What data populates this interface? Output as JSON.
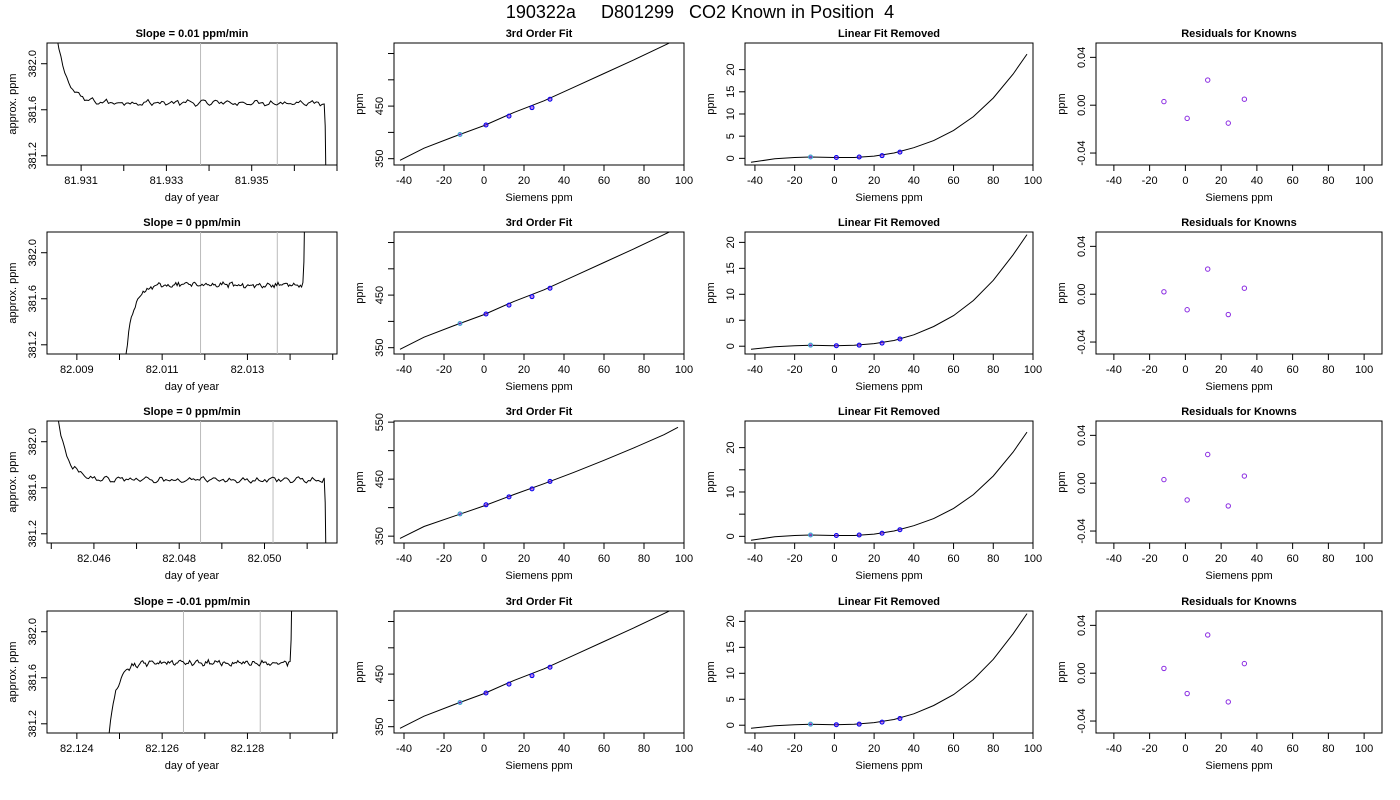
{
  "page": {
    "title": "190322a     D801299   CO2 Known in Position  4"
  },
  "chart_data": [
    {
      "row": 0,
      "col": 0,
      "type": "line",
      "title": "Slope =  0.01  ppm/min",
      "xlabel": "day of year",
      "ylabel": "approx. ppm",
      "xlim": [
        81.9302,
        81.937
      ],
      "ylim": [
        381.12,
        382.18
      ],
      "xticks": [
        81.931,
        81.932,
        81.933,
        81.934,
        81.935,
        81.936,
        81.937
      ],
      "xticklabels": [
        "81.931",
        "",
        "81.933",
        "",
        "81.935",
        "",
        ""
      ],
      "yticks": [
        381.2,
        381.6,
        382.0
      ],
      "yticklabels": [
        "381.2",
        "381.6",
        "382.0"
      ],
      "vlines": [
        81.9338,
        81.9356
      ],
      "level": 381.66,
      "shape": "down",
      "x_start": 81.9302,
      "x_edge": 81.9367,
      "colors": {
        "line": "#000000",
        "vline": "#bbbbbb"
      }
    },
    {
      "row": 0,
      "col": 1,
      "type": "line",
      "title": "3rd Order Fit",
      "xlabel": "Siemens ppm",
      "ylabel": "ppm",
      "xlim": [
        -45,
        100
      ],
      "ylim": [
        338,
        570
      ],
      "xticks": [
        -40,
        -20,
        0,
        20,
        40,
        60,
        80,
        100
      ],
      "xticklabels": [
        "-40",
        "-20",
        "0",
        "20",
        "40",
        "60",
        "80",
        "100"
      ],
      "yticks": [
        350,
        400,
        450,
        500,
        550
      ],
      "yticklabels": [
        "350",
        "",
        "450",
        "",
        ""
      ],
      "curve_x": [
        -42,
        -30,
        -15,
        0,
        15,
        30,
        45,
        60,
        75,
        90,
        97
      ],
      "curve_y": [
        347,
        370,
        392,
        413,
        438,
        460,
        486,
        512,
        538,
        565,
        578
      ],
      "points_x": [
        -12,
        1,
        12.5,
        24,
        33
      ],
      "points_y": [
        396,
        414,
        431,
        447,
        463
      ]
    },
    {
      "row": 0,
      "col": 2,
      "type": "line",
      "title": "Linear Fit Removed",
      "xlabel": "Siemens ppm",
      "ylabel": "ppm",
      "xlim": [
        -45,
        100
      ],
      "ylim": [
        -1.5,
        26
      ],
      "xticks": [
        -40,
        -20,
        0,
        20,
        40,
        60,
        80,
        100
      ],
      "xticklabels": [
        "-40",
        "-20",
        "0",
        "20",
        "40",
        "60",
        "80",
        "100"
      ],
      "yticks": [
        0,
        5,
        10,
        15,
        20
      ],
      "yticklabels": [
        "0",
        "5",
        "10",
        "15",
        "20"
      ],
      "curve_x": [
        -42,
        -30,
        -20,
        -12,
        0,
        10,
        20,
        30,
        40,
        50,
        60,
        70,
        80,
        90,
        97
      ],
      "curve_y": [
        -0.9,
        -0.1,
        0.2,
        0.3,
        0.2,
        0.2,
        0.5,
        1.2,
        2.4,
        4.0,
        6.3,
        9.4,
        13.6,
        19.0,
        23.5
      ],
      "points_x": [
        -12,
        1,
        12.5,
        24,
        33
      ],
      "points_y": [
        0.3,
        0.2,
        0.3,
        0.6,
        1.4
      ]
    },
    {
      "row": 0,
      "col": 3,
      "type": "scatter",
      "title": "Residuals for Knowns",
      "xlabel": "Siemens ppm",
      "ylabel": "ppm",
      "xlim": [
        -50,
        110
      ],
      "ylim": [
        -0.05,
        0.052
      ],
      "xticks": [
        -40,
        -20,
        0,
        20,
        40,
        60,
        80,
        100
      ],
      "xticklabels": [
        "-40",
        "-20",
        "0",
        "20",
        "40",
        "60",
        "80",
        "100"
      ],
      "yticks": [
        -0.04,
        0.0,
        0.04
      ],
      "yticklabels": [
        "-0.04",
        "0.00",
        "0.04"
      ],
      "points_x": [
        -12,
        1,
        12.5,
        24,
        33
      ],
      "points_y": [
        0.003,
        -0.011,
        0.021,
        -0.015,
        0.005
      ]
    },
    {
      "row": 1,
      "col": 0,
      "type": "line",
      "title": "Slope =  0  ppm/min",
      "xlabel": "day of year",
      "ylabel": "approx. ppm",
      "xlim": [
        82.0083,
        82.0151
      ],
      "ylim": [
        381.12,
        382.18
      ],
      "xticks": [
        82.009,
        82.01,
        82.011,
        82.012,
        82.013,
        82.014,
        82.015
      ],
      "xticklabels": [
        "82.009",
        "",
        "82.011",
        "",
        "82.013",
        "",
        ""
      ],
      "yticks": [
        381.2,
        381.6,
        382.0
      ],
      "yticklabels": [
        "381.2",
        "381.6",
        "382.0"
      ],
      "vlines": [
        82.0119,
        82.0137
      ],
      "level": 381.72,
      "shape": "up",
      "x_start": 82.01,
      "x_edge": 82.0143,
      "colors": {
        "line": "#000000",
        "vline": "#bbbbbb"
      }
    },
    {
      "row": 1,
      "col": 1,
      "type": "line",
      "title": "3rd Order Fit",
      "xlabel": "Siemens ppm",
      "ylabel": "ppm",
      "xlim": [
        -45,
        100
      ],
      "ylim": [
        338,
        570
      ],
      "xticks": [
        -40,
        -20,
        0,
        20,
        40,
        60,
        80,
        100
      ],
      "xticklabels": [
        "-40",
        "-20",
        "0",
        "20",
        "40",
        "60",
        "80",
        "100"
      ],
      "yticks": [
        350,
        400,
        450,
        500,
        550
      ],
      "yticklabels": [
        "350",
        "",
        "450",
        "",
        ""
      ],
      "curve_x": [
        -42,
        -30,
        -15,
        0,
        15,
        30,
        45,
        60,
        75,
        90,
        97
      ],
      "curve_y": [
        347,
        370,
        392,
        413,
        438,
        460,
        486,
        512,
        538,
        565,
        578
      ],
      "points_x": [
        -12,
        1,
        12.5,
        24,
        33
      ],
      "points_y": [
        396,
        414,
        431,
        447,
        463
      ]
    },
    {
      "row": 1,
      "col": 2,
      "type": "line",
      "title": "Linear Fit Removed",
      "xlabel": "Siemens ppm",
      "ylabel": "ppm",
      "xlim": [
        -45,
        100
      ],
      "ylim": [
        -1.5,
        22
      ],
      "xticks": [
        -40,
        -20,
        0,
        20,
        40,
        60,
        80,
        100
      ],
      "xticklabels": [
        "-40",
        "-20",
        "0",
        "20",
        "40",
        "60",
        "80",
        "100"
      ],
      "yticks": [
        0,
        5,
        10,
        15,
        20
      ],
      "yticklabels": [
        "0",
        "5",
        "10",
        "15",
        "20"
      ],
      "curve_x": [
        -42,
        -30,
        -20,
        -12,
        0,
        10,
        20,
        30,
        40,
        50,
        60,
        70,
        80,
        90,
        97
      ],
      "curve_y": [
        -0.6,
        -0.1,
        0.1,
        0.2,
        0.1,
        0.2,
        0.5,
        1.1,
        2.2,
        3.8,
        5.9,
        8.8,
        12.7,
        17.6,
        21.5
      ],
      "points_x": [
        -12,
        1,
        12.5,
        24,
        33
      ],
      "points_y": [
        0.2,
        0.1,
        0.2,
        0.6,
        1.4
      ]
    },
    {
      "row": 1,
      "col": 3,
      "type": "scatter",
      "title": "Residuals for Knowns",
      "xlabel": "Siemens ppm",
      "ylabel": "ppm",
      "xlim": [
        -50,
        110
      ],
      "ylim": [
        -0.05,
        0.052
      ],
      "xticks": [
        -40,
        -20,
        0,
        20,
        40,
        60,
        80,
        100
      ],
      "xticklabels": [
        "-40",
        "-20",
        "0",
        "20",
        "40",
        "60",
        "80",
        "100"
      ],
      "yticks": [
        -0.04,
        0.0,
        0.04
      ],
      "yticklabels": [
        "-0.04",
        "0.00",
        "0.04"
      ],
      "points_x": [
        -12,
        1,
        12.5,
        24,
        33
      ],
      "points_y": [
        0.002,
        -0.013,
        0.021,
        -0.017,
        0.005
      ]
    },
    {
      "row": 2,
      "col": 0,
      "type": "line",
      "title": "Slope =  0  ppm/min",
      "xlabel": "day of year",
      "ylabel": "approx. ppm",
      "xlim": [
        82.0449,
        82.0517
      ],
      "ylim": [
        381.12,
        382.18
      ],
      "xticks": [
        82.045,
        82.046,
        82.047,
        82.048,
        82.049,
        82.05,
        82.051
      ],
      "xticklabels": [
        "",
        "82.046",
        "",
        "82.048",
        "",
        "82.050",
        ""
      ],
      "yticks": [
        381.2,
        381.6,
        382.0
      ],
      "yticklabels": [
        "381.2",
        "381.6",
        "382.0"
      ],
      "vlines": [
        82.0485,
        82.0502
      ],
      "level": 381.67,
      "shape": "down",
      "x_start": 82.0449,
      "x_edge": 82.0514,
      "colors": {
        "line": "#000000",
        "vline": "#bbbbbb"
      }
    },
    {
      "row": 2,
      "col": 1,
      "type": "line",
      "title": "3rd Order Fit",
      "xlabel": "Siemens ppm",
      "ylabel": "ppm",
      "xlim": [
        -45,
        100
      ],
      "ylim": [
        338,
        552
      ],
      "xticks": [
        -40,
        -20,
        0,
        20,
        40,
        60,
        80,
        100
      ],
      "xticklabels": [
        "-40",
        "-20",
        "0",
        "20",
        "40",
        "60",
        "80",
        "100"
      ],
      "yticks": [
        350,
        400,
        450,
        500,
        550
      ],
      "yticklabels": [
        "350",
        "",
        "450",
        "",
        "550"
      ],
      "curve_x": [
        -42,
        -30,
        -15,
        0,
        15,
        30,
        45,
        60,
        75,
        90,
        97
      ],
      "curve_y": [
        346,
        367,
        385,
        403,
        423,
        442,
        462,
        483,
        505,
        528,
        541
      ],
      "points_x": [
        -12,
        1,
        12.5,
        24,
        33
      ],
      "points_y": [
        389,
        405,
        419,
        433,
        446
      ]
    },
    {
      "row": 2,
      "col": 2,
      "type": "line",
      "title": "Linear Fit Removed",
      "xlabel": "Siemens ppm",
      "ylabel": "ppm",
      "xlim": [
        -45,
        100
      ],
      "ylim": [
        -1.5,
        26
      ],
      "xticks": [
        -40,
        -20,
        0,
        20,
        40,
        60,
        80,
        100
      ],
      "xticklabels": [
        "-40",
        "-20",
        "0",
        "20",
        "40",
        "60",
        "80",
        "100"
      ],
      "yticks": [
        0,
        5,
        10,
        15,
        20
      ],
      "yticklabels": [
        "0",
        "",
        "10",
        "",
        "20"
      ],
      "curve_x": [
        -42,
        -30,
        -20,
        -12,
        0,
        10,
        20,
        30,
        40,
        50,
        60,
        70,
        80,
        90,
        97
      ],
      "curve_y": [
        -0.9,
        -0.1,
        0.2,
        0.3,
        0.2,
        0.2,
        0.5,
        1.2,
        2.4,
        4.0,
        6.3,
        9.4,
        13.6,
        19.0,
        23.5
      ],
      "points_x": [
        -12,
        1,
        12.5,
        24,
        33
      ],
      "points_y": [
        0.3,
        0.2,
        0.3,
        0.7,
        1.5
      ]
    },
    {
      "row": 2,
      "col": 3,
      "type": "scatter",
      "title": "Residuals for Knowns",
      "xlabel": "Siemens ppm",
      "ylabel": "ppm",
      "xlim": [
        -50,
        110
      ],
      "ylim": [
        -0.05,
        0.052
      ],
      "xticks": [
        -40,
        -20,
        0,
        20,
        40,
        60,
        80,
        100
      ],
      "xticklabels": [
        "-40",
        "-20",
        "0",
        "20",
        "40",
        "60",
        "80",
        "100"
      ],
      "yticks": [
        -0.04,
        0.0,
        0.04
      ],
      "yticklabels": [
        "-0.04",
        "0.00",
        "0.04"
      ],
      "points_x": [
        -12,
        1,
        12.5,
        24,
        33
      ],
      "points_y": [
        0.003,
        -0.014,
        0.024,
        -0.019,
        0.006
      ]
    },
    {
      "row": 3,
      "col": 0,
      "type": "line",
      "title": "Slope =  -0.01  ppm/min",
      "xlabel": "day of year",
      "ylabel": "approx. ppm",
      "xlim": [
        82.1233,
        82.1301
      ],
      "ylim": [
        381.12,
        382.18
      ],
      "xticks": [
        82.124,
        82.125,
        82.126,
        82.127,
        82.128,
        82.129,
        82.13
      ],
      "xticklabels": [
        "82.124",
        "",
        "82.126",
        "",
        "82.128",
        "",
        ""
      ],
      "yticks": [
        381.2,
        381.6,
        382.0
      ],
      "yticklabels": [
        "381.2",
        "381.6",
        "382.0"
      ],
      "vlines": [
        82.1265,
        82.1283
      ],
      "level": 381.73,
      "shape": "up",
      "x_start": 82.1246,
      "x_edge": 82.129,
      "colors": {
        "line": "#000000",
        "vline": "#bbbbbb"
      }
    },
    {
      "row": 3,
      "col": 1,
      "type": "line",
      "title": "3rd Order Fit",
      "xlabel": "Siemens ppm",
      "ylabel": "ppm",
      "xlim": [
        -45,
        100
      ],
      "ylim": [
        338,
        570
      ],
      "xticks": [
        -40,
        -20,
        0,
        20,
        40,
        60,
        80,
        100
      ],
      "xticklabels": [
        "-40",
        "-20",
        "0",
        "20",
        "40",
        "60",
        "80",
        "100"
      ],
      "yticks": [
        350,
        400,
        450,
        500,
        550
      ],
      "yticklabels": [
        "350",
        "",
        "450",
        "",
        ""
      ],
      "curve_x": [
        -42,
        -30,
        -15,
        0,
        15,
        30,
        45,
        60,
        75,
        90,
        97
      ],
      "curve_y": [
        347,
        370,
        392,
        413,
        438,
        460,
        486,
        512,
        538,
        565,
        578
      ],
      "points_x": [
        -12,
        1,
        12.5,
        24,
        33
      ],
      "points_y": [
        396,
        414,
        431,
        447,
        463
      ]
    },
    {
      "row": 3,
      "col": 2,
      "type": "line",
      "title": "Linear Fit Removed",
      "xlabel": "Siemens ppm",
      "ylabel": "ppm",
      "xlim": [
        -45,
        100
      ],
      "ylim": [
        -1.5,
        22
      ],
      "xticks": [
        -40,
        -20,
        0,
        20,
        40,
        60,
        80,
        100
      ],
      "xticklabels": [
        "-40",
        "-20",
        "0",
        "20",
        "40",
        "60",
        "80",
        "100"
      ],
      "yticks": [
        0,
        5,
        10,
        15,
        20
      ],
      "yticklabels": [
        "0",
        "5",
        "10",
        "15",
        "20"
      ],
      "curve_x": [
        -42,
        -30,
        -20,
        -12,
        0,
        10,
        20,
        30,
        40,
        50,
        60,
        70,
        80,
        90,
        97
      ],
      "curve_y": [
        -0.6,
        -0.1,
        0.1,
        0.2,
        0.1,
        0.2,
        0.5,
        1.1,
        2.2,
        3.8,
        5.9,
        8.8,
        12.7,
        17.6,
        21.5
      ],
      "points_x": [
        -12,
        1,
        12.5,
        24,
        33
      ],
      "points_y": [
        0.2,
        0.1,
        0.2,
        0.6,
        1.3
      ]
    },
    {
      "row": 3,
      "col": 3,
      "type": "scatter",
      "title": "Residuals for Knowns",
      "xlabel": "Siemens ppm",
      "ylabel": "ppm",
      "xlim": [
        -50,
        110
      ],
      "ylim": [
        -0.05,
        0.052
      ],
      "xticks": [
        -40,
        -20,
        0,
        20,
        40,
        60,
        80,
        100
      ],
      "xticklabels": [
        "-40",
        "-20",
        "0",
        "20",
        "40",
        "60",
        "80",
        "100"
      ],
      "yticks": [
        -0.04,
        0.0,
        0.04
      ],
      "yticklabels": [
        "-0.04",
        "0.00",
        "0.04"
      ],
      "points_x": [
        -12,
        1,
        12.5,
        24,
        33
      ],
      "points_y": [
        0.004,
        -0.017,
        0.032,
        -0.024,
        0.008
      ]
    }
  ],
  "colors": {
    "point_stroke": "#0000ee",
    "point_fill": "#8a2be2",
    "first_point": "#33aacc",
    "residual_point": "#8a2be2"
  }
}
